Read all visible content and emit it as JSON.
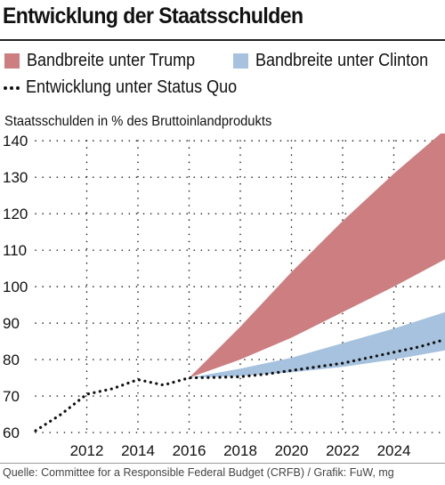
{
  "title": "Entwicklung der Staatsschulden",
  "legend": {
    "trump": {
      "label": "Bandbreite unter Trump",
      "color": "#cc7e80"
    },
    "clinton": {
      "label": "Bandbreite unter Clinton",
      "color": "#a6c2de"
    },
    "status_quo": {
      "label": "Entwicklung unter Status Quo",
      "color": "#111111"
    }
  },
  "source": "Quelle: Committee for a Responsible Federal Budget (CRFB) / Grafik: FuW, mg",
  "chart_data": {
    "type": "area",
    "ylabel": "Staatsschulden in % des Bruttoinlandprodukts",
    "xlabel": "",
    "x_ticks": [
      2012,
      2014,
      2016,
      2018,
      2020,
      2022,
      2024
    ],
    "y_ticks": [
      60,
      70,
      80,
      90,
      100,
      110,
      120,
      130,
      140
    ],
    "xlim": [
      2010,
      2026
    ],
    "ylim": [
      60,
      142
    ],
    "grid": true,
    "series": [
      {
        "name": "Entwicklung unter Status Quo",
        "style": "dotted-line",
        "x": [
          2010,
          2011,
          2012,
          2013,
          2014,
          2015,
          2016,
          2017,
          2018,
          2019,
          2020,
          2021,
          2022,
          2023,
          2024,
          2025,
          2026
        ],
        "y": [
          60.5,
          65,
          70.5,
          72,
          74.5,
          73,
          75,
          75.1,
          75.3,
          76,
          77,
          78,
          79,
          80.5,
          82,
          83.5,
          85.5
        ]
      },
      {
        "name": "Bandbreite unter Clinton",
        "style": "band",
        "x": [
          2016,
          2018,
          2020,
          2022,
          2024,
          2026
        ],
        "low": [
          75,
          75.5,
          76.5,
          78,
          80,
          82.5
        ],
        "high": [
          75,
          77.5,
          80.5,
          84.5,
          88.5,
          93
        ]
      },
      {
        "name": "Bandbreite unter Trump",
        "style": "band",
        "x": [
          2016,
          2018,
          2020,
          2022,
          2024,
          2026
        ],
        "low": [
          75,
          80,
          86,
          93,
          100,
          107.5
        ],
        "high": [
          75,
          89,
          104,
          118,
          131,
          143
        ]
      }
    ]
  }
}
